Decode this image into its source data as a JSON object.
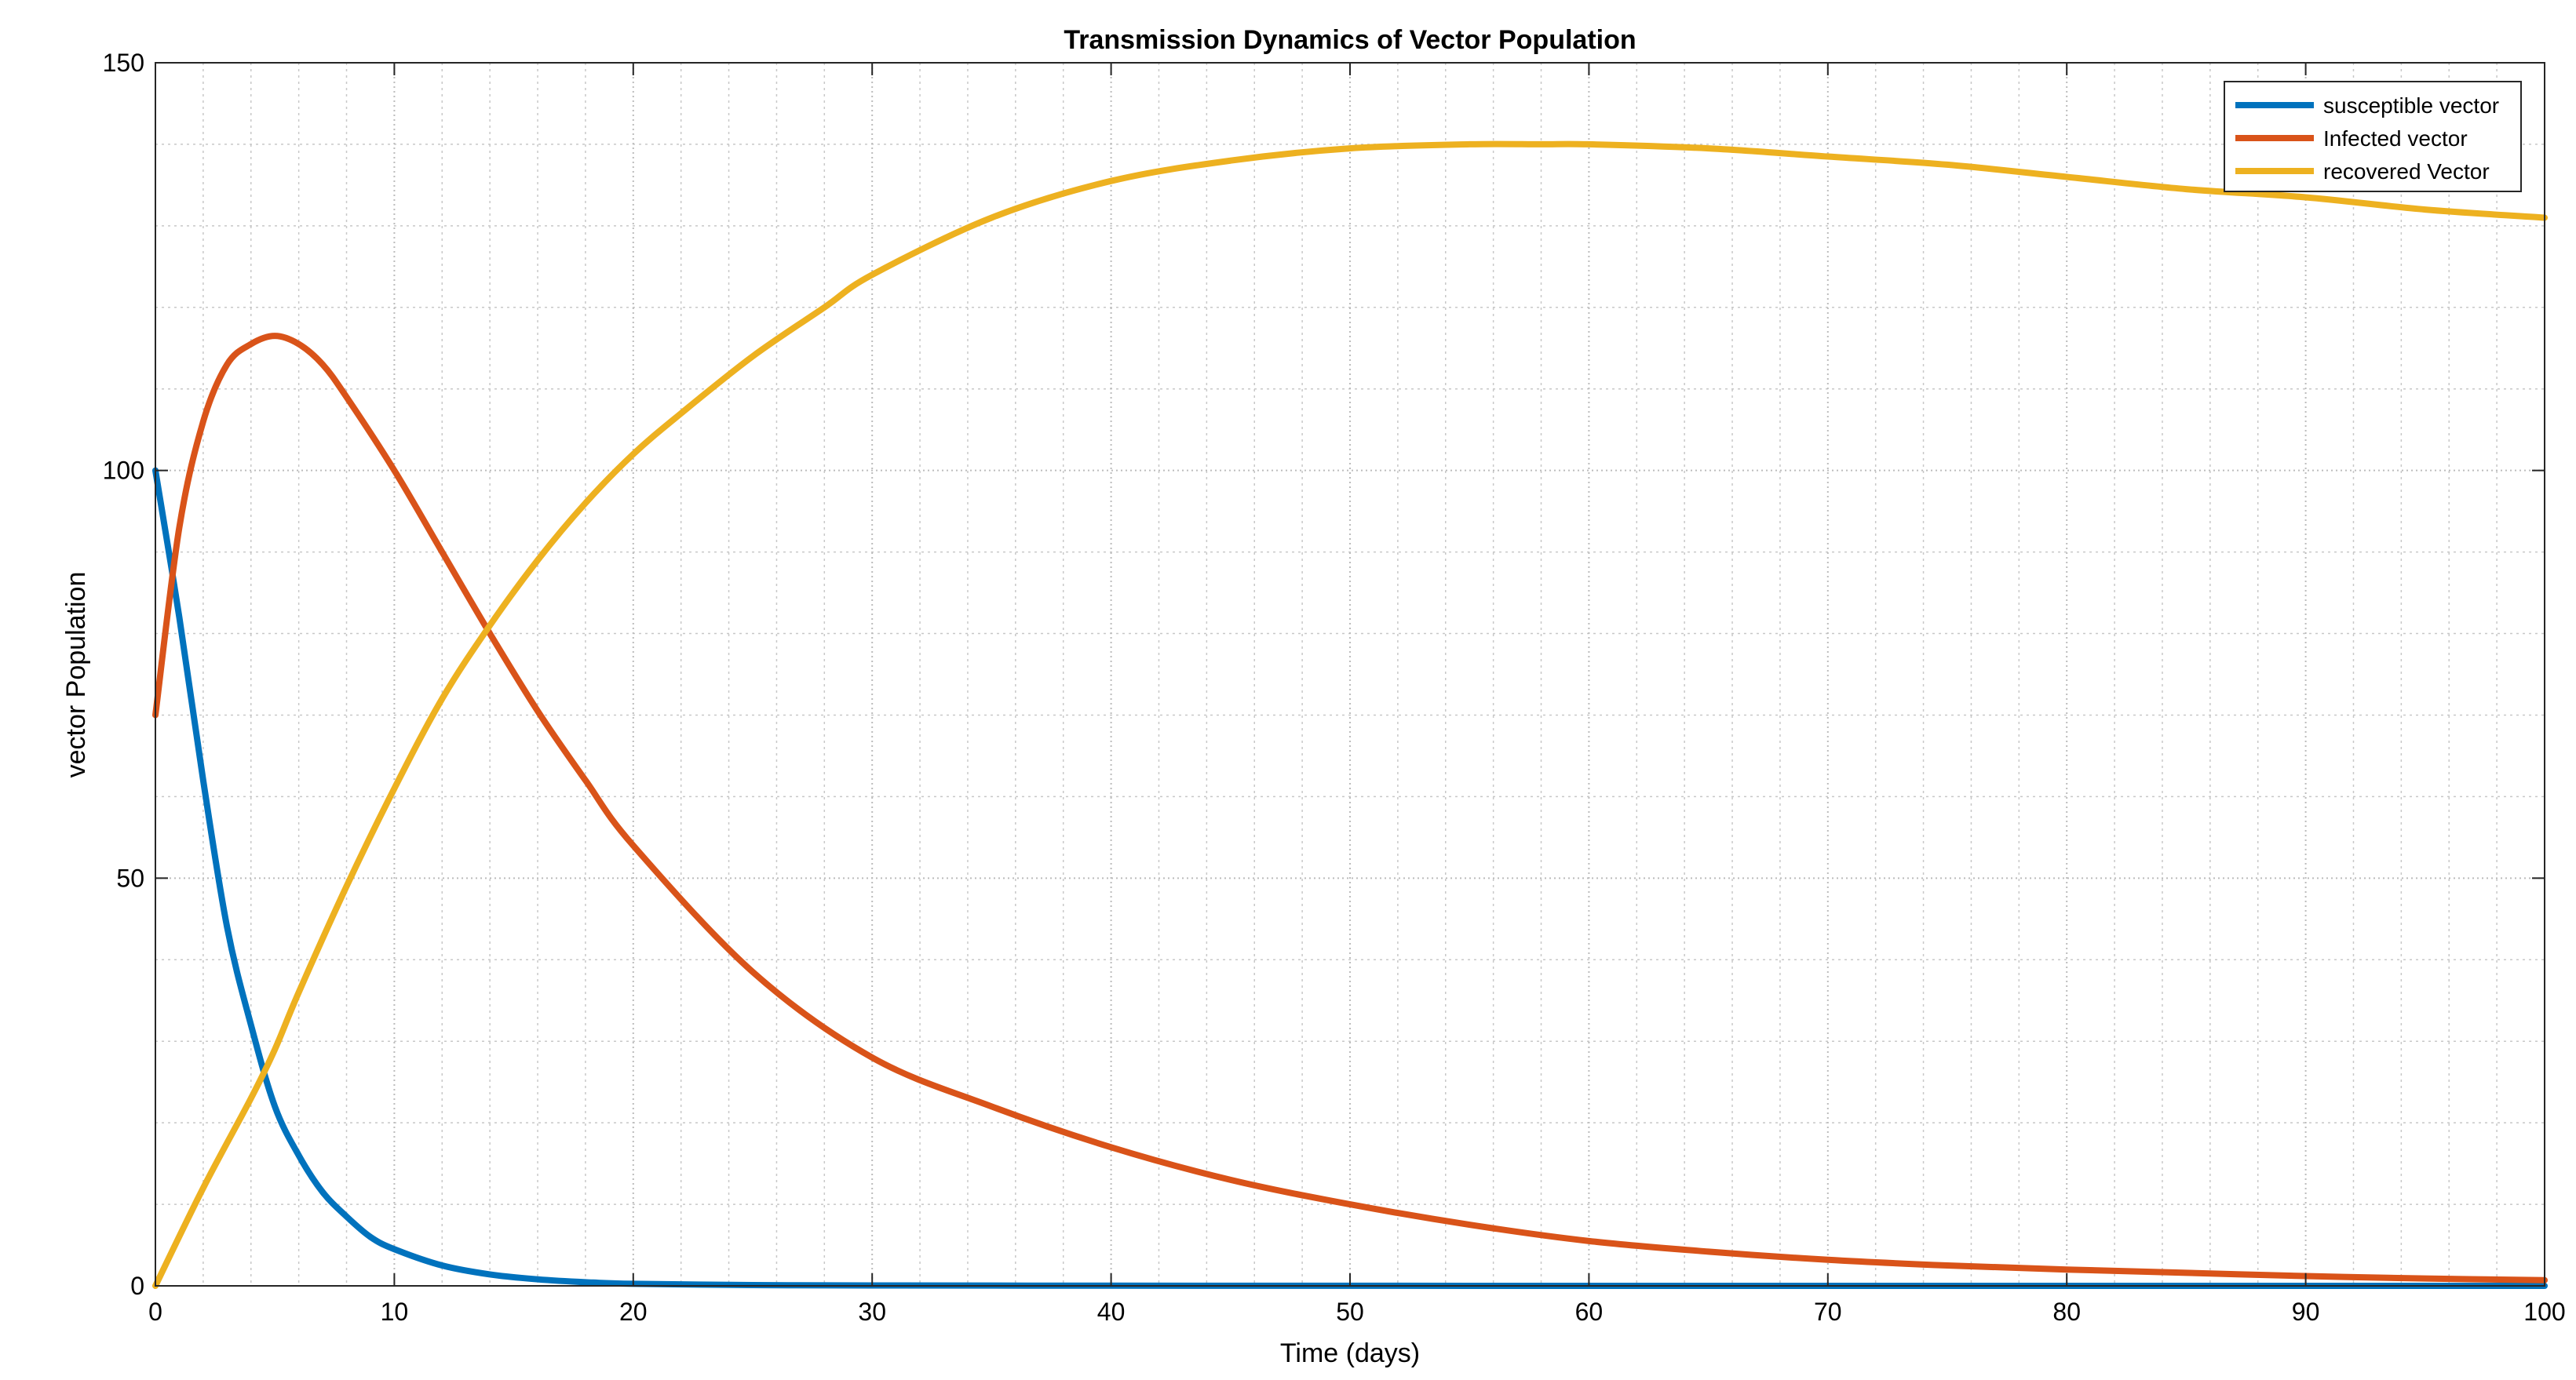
{
  "chart_data": {
    "type": "line",
    "title": "Transmission Dynamics of Vector Population",
    "xlabel": "Time (days)",
    "ylabel": "vector Population",
    "xlim": [
      0,
      100
    ],
    "ylim": [
      0,
      150
    ],
    "xticks": [
      0,
      10,
      20,
      30,
      40,
      50,
      60,
      70,
      80,
      90,
      100
    ],
    "yticks": [
      0,
      50,
      100,
      150
    ],
    "xtick_labels": [
      "0",
      "10",
      "20",
      "30",
      "40",
      "50",
      "60",
      "70",
      "80",
      "90",
      "100"
    ],
    "ytick_labels": [
      "0",
      "50",
      "100",
      "150"
    ],
    "grid": true,
    "minor_grid": true,
    "legend_position": "top-right",
    "series": [
      {
        "name": "susceptible vector",
        "color": "#0072BD",
        "x": [
          0,
          1,
          2,
          3,
          4,
          5,
          6,
          7,
          8,
          9,
          10,
          12,
          14,
          16,
          18,
          20,
          25,
          30,
          40,
          50,
          60,
          70,
          80,
          90,
          100
        ],
        "y": [
          100,
          82,
          62,
          44,
          32,
          22,
          16,
          11.5,
          8.5,
          6,
          4.5,
          2.5,
          1.4,
          0.8,
          0.45,
          0.25,
          0.1,
          0.05,
          0.02,
          0.01,
          0,
          0,
          0,
          0,
          0
        ]
      },
      {
        "name": "Infected vector",
        "color": "#D95319",
        "x": [
          0,
          1,
          2,
          3,
          4,
          5,
          6,
          7,
          8,
          10,
          12,
          14,
          16,
          18,
          20,
          25,
          30,
          35,
          40,
          45,
          50,
          55,
          60,
          65,
          70,
          75,
          80,
          85,
          90,
          95,
          100
        ],
        "y": [
          70,
          93,
          106,
          113,
          115.5,
          116.5,
          115.5,
          113,
          109,
          100,
          90,
          80,
          70.5,
          62,
          54,
          38.5,
          28,
          22,
          17,
          13,
          10,
          7.5,
          5.5,
          4.2,
          3.2,
          2.5,
          2,
          1.6,
          1.2,
          0.9,
          0.7
        ]
      },
      {
        "name": "recovered Vector",
        "color": "#EDB120",
        "x": [
          0,
          2,
          4,
          5,
          6,
          8,
          10,
          12,
          14,
          16,
          18,
          20,
          22,
          25,
          28,
          30,
          35,
          40,
          45,
          50,
          55,
          58,
          60,
          65,
          70,
          75,
          80,
          85,
          90,
          95,
          100
        ],
        "y": [
          0,
          12,
          23,
          29,
          36,
          49,
          61,
          72,
          81,
          89,
          96,
          102,
          107,
          114,
          120,
          124,
          131,
          135.5,
          138,
          139.5,
          140,
          140,
          140,
          139.5,
          138.5,
          137.5,
          136,
          134.5,
          133.5,
          132,
          131
        ]
      }
    ]
  }
}
